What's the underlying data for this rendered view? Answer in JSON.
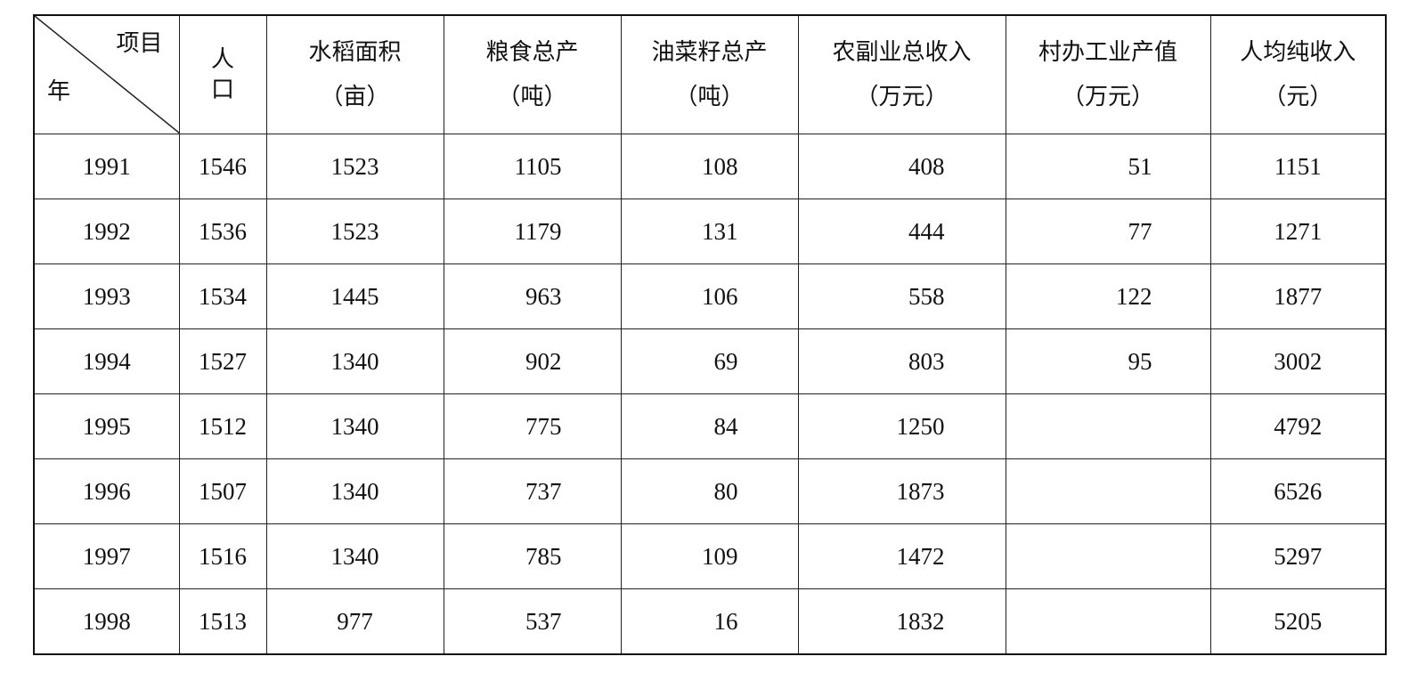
{
  "table": {
    "corner": {
      "item_label": "项目",
      "year_label": "年"
    },
    "headers": [
      {
        "line1": "人",
        "line2": "口"
      },
      {
        "line1": "水稻面积",
        "line2": "（亩）"
      },
      {
        "line1": "粮食总产",
        "line2": "（吨）"
      },
      {
        "line1": "油菜籽总产",
        "line2": "（吨）"
      },
      {
        "line1": "农副业总收入",
        "line2": "（万元）"
      },
      {
        "line1": "村办工业产值",
        "line2": "（万元）"
      },
      {
        "line1": "人均纯收入",
        "line2": "（元）"
      }
    ],
    "rows": [
      [
        "1991",
        "1546",
        "1523",
        "1105",
        "108",
        "408",
        "51",
        "1151"
      ],
      [
        "1992",
        "1536",
        "1523",
        "1179",
        "131",
        "444",
        "77",
        "1271"
      ],
      [
        "1993",
        "1534",
        "1445",
        "963",
        "106",
        "558",
        "122",
        "1877"
      ],
      [
        "1994",
        "1527",
        "1340",
        "902",
        "69",
        "803",
        "95",
        "3002"
      ],
      [
        "1995",
        "1512",
        "1340",
        "775",
        "84",
        "1250",
        "",
        "4792"
      ],
      [
        "1996",
        "1507",
        "1340",
        "737",
        "80",
        "1873",
        "",
        "6526"
      ],
      [
        "1997",
        "1516",
        "1340",
        "785",
        "109",
        "1472",
        "",
        "5297"
      ],
      [
        "1998",
        "1513",
        "977",
        "537",
        "16",
        "1832",
        "",
        "5205"
      ]
    ]
  }
}
